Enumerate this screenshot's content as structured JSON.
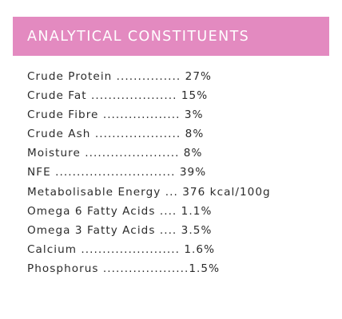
{
  "theme": {
    "header_bg": "#e38ac0",
    "header_text": "#ffffff",
    "body_text": "#2b2b2b"
  },
  "section": {
    "title": "ANALYTICAL CONSTITUENTS"
  },
  "constituents": [
    {
      "text": "Crude Protein ............... 27%"
    },
    {
      "text": "Crude Fat .................... 15%"
    },
    {
      "text": "Crude Fibre .................. 3%"
    },
    {
      "text": "Crude Ash .................... 8%"
    },
    {
      "text": "Moisture ...................... 8%"
    },
    {
      "text": "NFE ............................ 39%"
    },
    {
      "text": "Metabolisable Energy ... 376 kcal/100g"
    },
    {
      "text": "Omega 6 Fatty Acids .... 1.1%"
    },
    {
      "text": "Omega 3 Fatty Acids .... 3.5%"
    },
    {
      "text": "Calcium ....................... 1.6%"
    },
    {
      "text": "Phosphorus ....................1.5%"
    }
  ]
}
